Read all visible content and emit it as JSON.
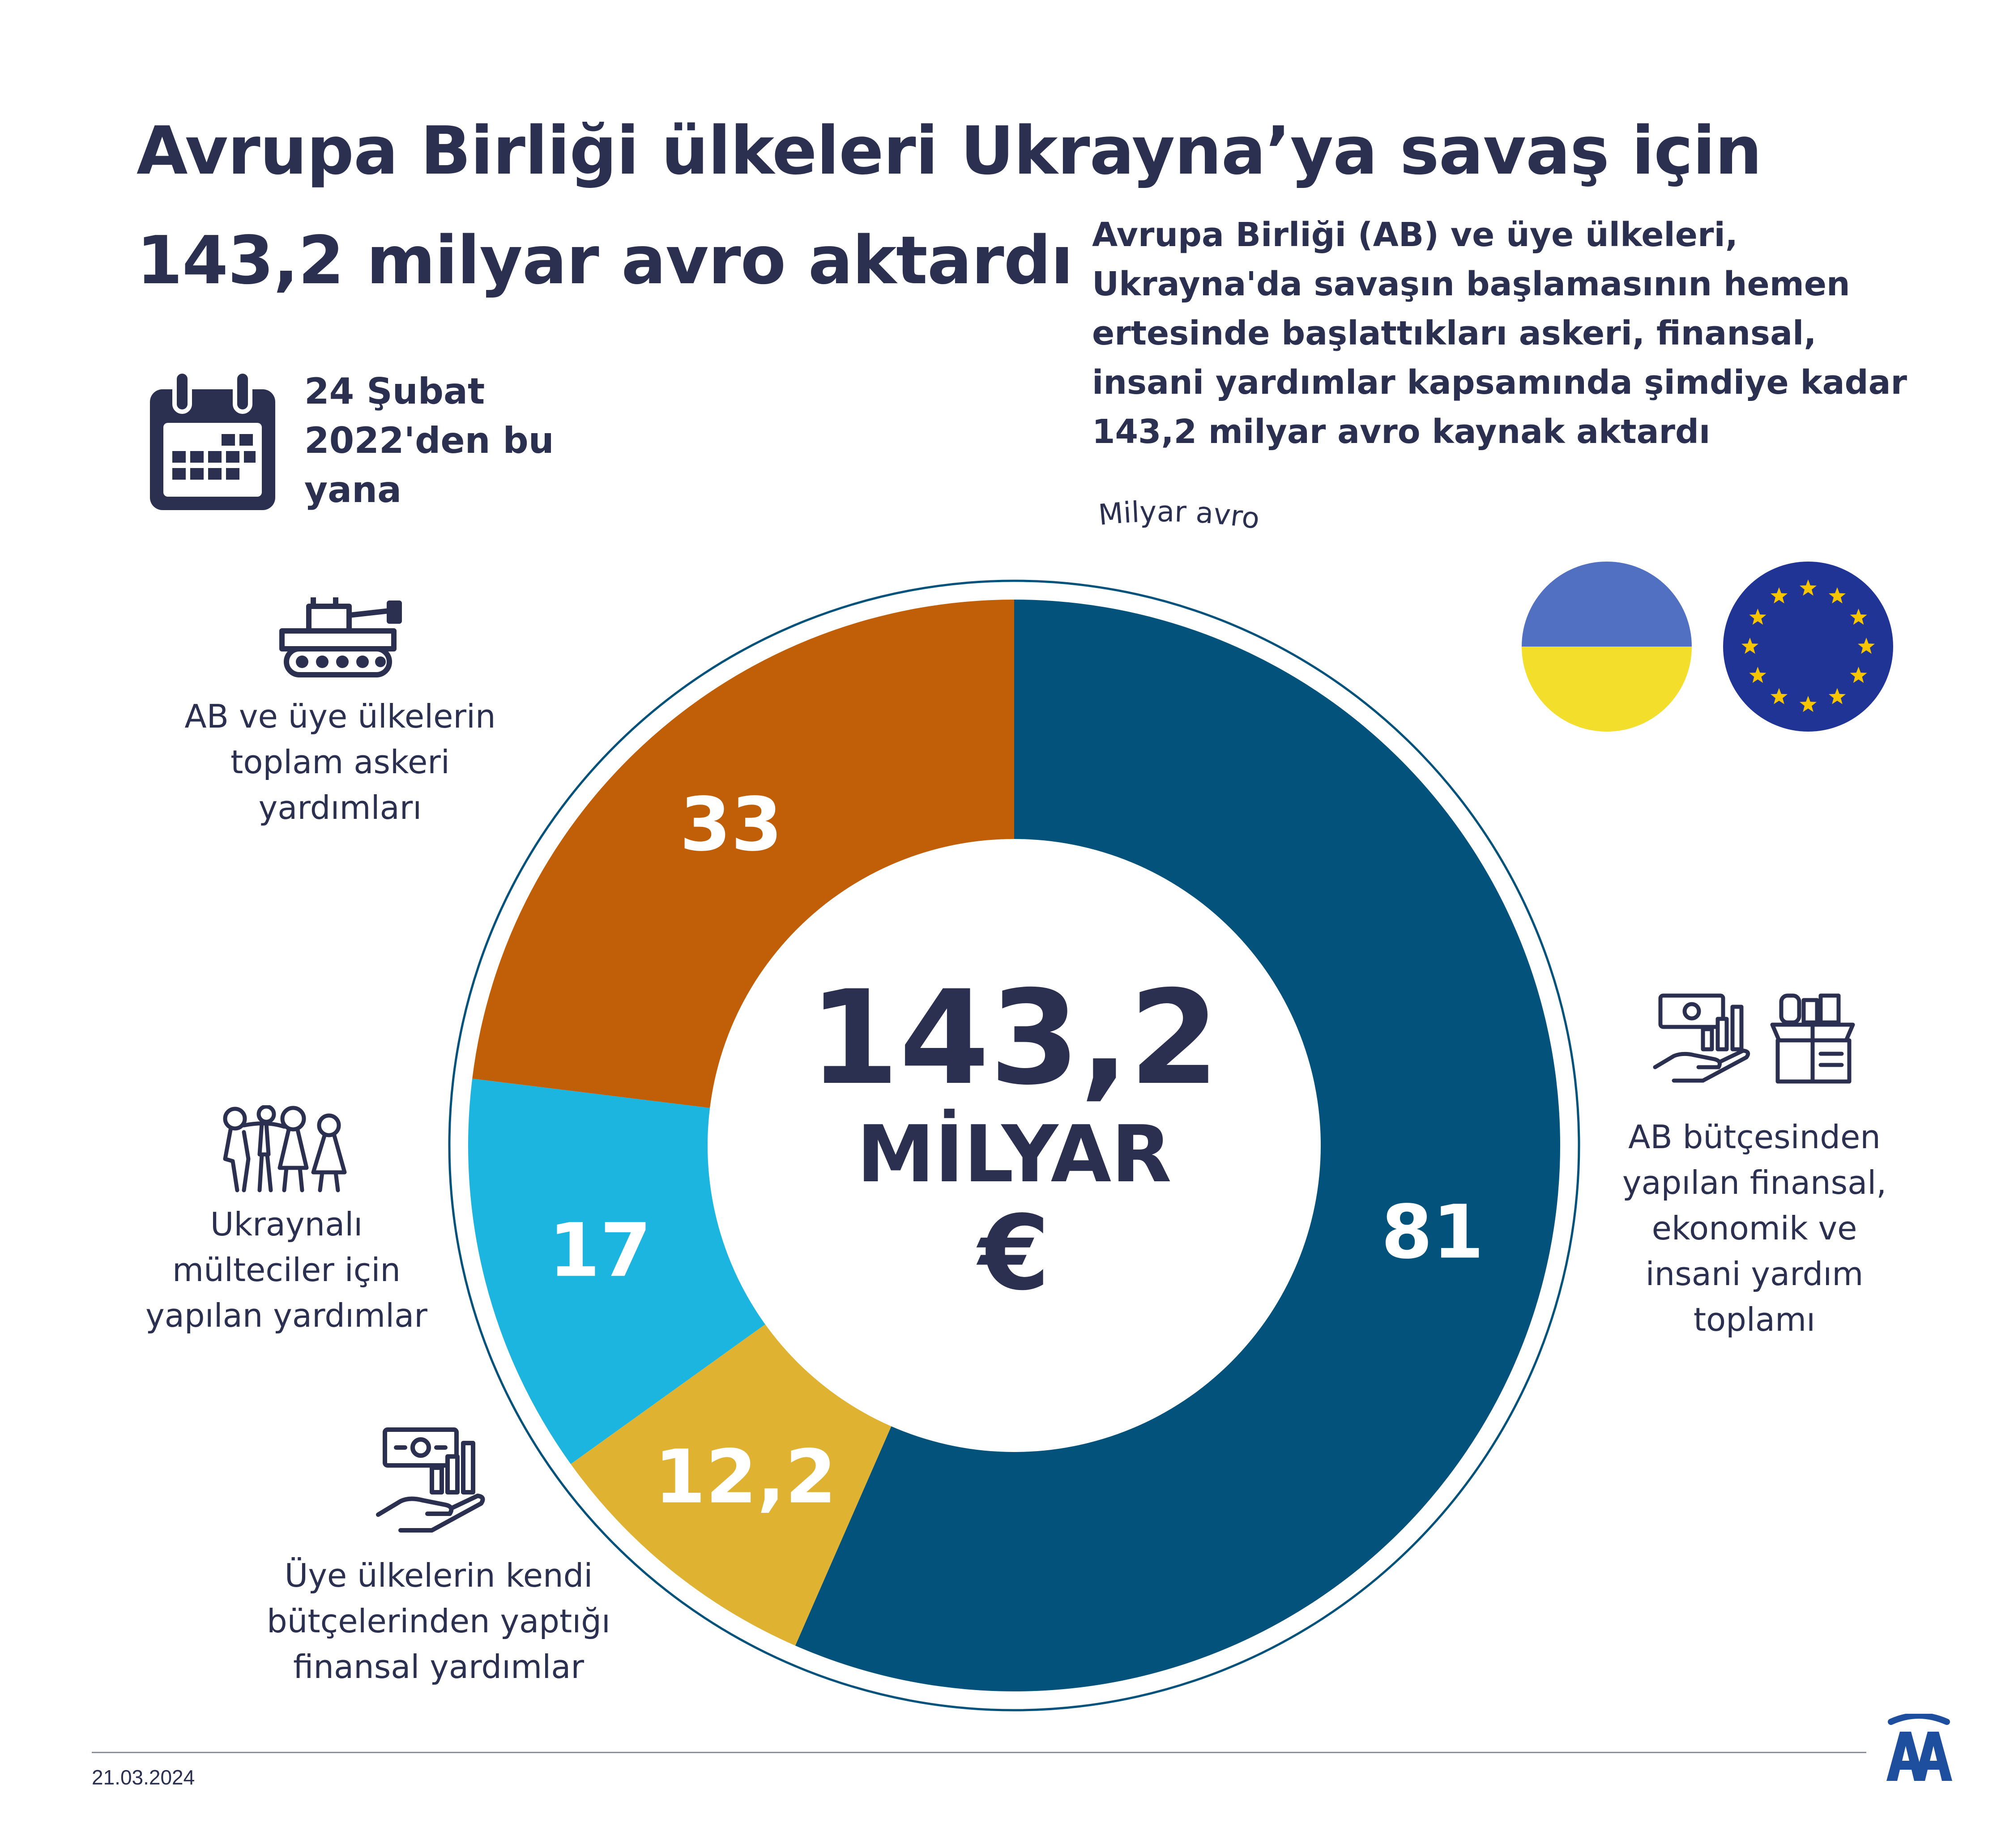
{
  "title": {
    "line1": "Avrupa Birliği ülkeleri Ukrayna’ya savaş için",
    "line2": "143,2 milyar avro aktardı"
  },
  "description": {
    "line1": "Avrupa Birliği (AB) ve üye ülkeleri,",
    "line2": "Ukrayna'da savaşın başlamasının hemen",
    "line3": "ertesinde başlattıkları askeri, finansal,",
    "line4": "insani yardımlar kapsamında şimdiye kadar",
    "line5": "143,2 milyar avro kaynak aktardı"
  },
  "date_info": {
    "line1": "24 Şubat",
    "line2": "2022'den bu",
    "line3": "yana"
  },
  "center": {
    "amount": "143,2",
    "unit": "MİLYAR",
    "currency": "€"
  },
  "ring_label": "Milyar avro",
  "labels": {
    "military": [
      "AB ve üye ülkelerin",
      "toplam askeri",
      "yardımları"
    ],
    "refugees": [
      "Ukraynalı",
      "mülteciler için",
      "yapılan yardımlar"
    ],
    "member_finance": [
      "Üye ülkelerin kendi",
      "bütçelerinden yaptığı",
      "finansal yardımlar"
    ],
    "eu_budget": [
      "AB bütçesinden",
      "yapılan finansal,",
      "ekonomik ve",
      "insani yardım",
      "toplamı"
    ]
  },
  "footer": {
    "date": "21.03.2024"
  },
  "colors": {
    "navy_text": "#2b3050",
    "eu_budget": "#02527c",
    "military": "#c05f08",
    "refugees": "#1cb5df",
    "member_finance": "#e0b232",
    "ukraine_blue": "#5270c2",
    "ukraine_yellow": "#f3de2b",
    "eu_blue": "#1f3495",
    "eu_star": "#f6c500"
  },
  "icons": [
    "calendar-icon",
    "tank-icon",
    "refugees-icon",
    "money-hand-icon",
    "aid-box-icon",
    "ukraine-flag-icon",
    "eu-flag-icon",
    "aa-logo-icon"
  ],
  "chart_data": {
    "type": "pie",
    "style": "donut",
    "total": 143.2,
    "unit": "Milyar avro",
    "categories": [
      "AB bütçesinden yapılan finansal, ekonomik ve insani yardım toplamı",
      "Üye ülkelerin kendi bütçelerinden yaptığı finansal yardımlar",
      "Ukraynalı mülteciler için yapılan yardımlar",
      "AB ve üye ülkelerin toplam askeri yardımları"
    ],
    "values": [
      81,
      12.2,
      17,
      33
    ],
    "value_labels": [
      "81",
      "12,2",
      "17",
      "33"
    ],
    "colors": [
      "#02527c",
      "#e0b232",
      "#1cb5df",
      "#c05f08"
    ],
    "direction": "clockwise from top"
  }
}
